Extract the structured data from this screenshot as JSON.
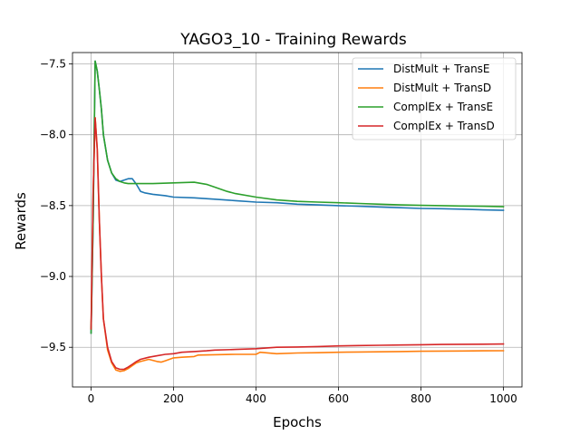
{
  "chart_data": {
    "type": "line",
    "title": "YAGO3_10 - Training Rewards",
    "xlabel": "Epochs",
    "ylabel": "Rewards",
    "xlim": [
      -45,
      1045
    ],
    "ylim": [
      -9.78,
      -7.42
    ],
    "xticks": [
      0,
      200,
      400,
      600,
      800,
      1000
    ],
    "yticks": [
      -9.5,
      -9.0,
      -8.5,
      -8.0,
      -7.5
    ],
    "xtick_labels": [
      "0",
      "200",
      "400",
      "600",
      "800",
      "1000"
    ],
    "ytick_labels": [
      "−9.5",
      "−9.0",
      "−8.5",
      "−8.0",
      "−7.5"
    ],
    "grid": true,
    "legend_position": "top-right",
    "series": [
      {
        "name": "DistMult + TransE",
        "color": "#1f77b4",
        "x": [
          0,
          5,
          10,
          15,
          20,
          25,
          30,
          40,
          50,
          60,
          70,
          80,
          90,
          100,
          110,
          120,
          130,
          150,
          180,
          200,
          250,
          300,
          350,
          400,
          450,
          500,
          550,
          600,
          650,
          700,
          750,
          800,
          850,
          900,
          950,
          1000
        ],
        "y": [
          -9.4,
          -8.6,
          -7.48,
          -7.55,
          -7.68,
          -7.82,
          -8.0,
          -8.18,
          -8.27,
          -8.32,
          -8.33,
          -8.32,
          -8.31,
          -8.31,
          -8.35,
          -8.4,
          -8.41,
          -8.42,
          -8.43,
          -8.44,
          -8.445,
          -8.455,
          -8.465,
          -8.475,
          -8.48,
          -8.49,
          -8.495,
          -8.5,
          -8.505,
          -8.51,
          -8.515,
          -8.52,
          -8.522,
          -8.525,
          -8.53,
          -8.533
        ]
      },
      {
        "name": "DistMult + TransD",
        "color": "#ff7f0e",
        "x": [
          0,
          5,
          10,
          15,
          20,
          25,
          30,
          40,
          50,
          60,
          70,
          80,
          90,
          100,
          110,
          120,
          140,
          160,
          170,
          180,
          200,
          220,
          250,
          260,
          300,
          350,
          400,
          410,
          450,
          500,
          550,
          600,
          650,
          700,
          750,
          800,
          850,
          900,
          950,
          1000
        ],
        "y": [
          -9.37,
          -8.4,
          -7.88,
          -8.1,
          -8.6,
          -9.0,
          -9.3,
          -9.52,
          -9.61,
          -9.66,
          -9.67,
          -9.665,
          -9.65,
          -9.63,
          -9.61,
          -9.6,
          -9.585,
          -9.6,
          -9.605,
          -9.595,
          -9.575,
          -9.57,
          -9.565,
          -9.555,
          -9.552,
          -9.55,
          -9.55,
          -9.535,
          -9.545,
          -9.54,
          -9.538,
          -9.535,
          -9.533,
          -9.532,
          -9.53,
          -9.528,
          -9.527,
          -9.526,
          -9.525,
          -9.524
        ]
      },
      {
        "name": "ComplEx + TransE",
        "color": "#2ca02c",
        "x": [
          0,
          5,
          10,
          15,
          20,
          25,
          30,
          40,
          50,
          60,
          70,
          80,
          90,
          100,
          120,
          150,
          200,
          250,
          280,
          300,
          330,
          350,
          400,
          450,
          500,
          550,
          600,
          650,
          700,
          750,
          800,
          850,
          900,
          950,
          1000
        ],
        "y": [
          -9.4,
          -8.6,
          -7.48,
          -7.55,
          -7.68,
          -7.82,
          -8.0,
          -8.18,
          -8.27,
          -8.31,
          -8.33,
          -8.34,
          -8.345,
          -8.345,
          -8.345,
          -8.345,
          -8.34,
          -8.335,
          -8.35,
          -8.37,
          -8.4,
          -8.415,
          -8.44,
          -8.46,
          -8.47,
          -8.475,
          -8.48,
          -8.485,
          -8.49,
          -8.495,
          -8.498,
          -8.5,
          -8.503,
          -8.505,
          -8.507
        ]
      },
      {
        "name": "ComplEx + TransD",
        "color": "#d62728",
        "x": [
          0,
          5,
          10,
          15,
          20,
          25,
          30,
          40,
          50,
          60,
          70,
          80,
          90,
          100,
          110,
          120,
          140,
          160,
          180,
          200,
          220,
          250,
          280,
          300,
          350,
          400,
          450,
          500,
          550,
          600,
          650,
          700,
          750,
          800,
          850,
          900,
          950,
          1000
        ],
        "y": [
          -9.37,
          -8.4,
          -7.88,
          -8.1,
          -8.6,
          -9.0,
          -9.3,
          -9.5,
          -9.6,
          -9.645,
          -9.655,
          -9.655,
          -9.64,
          -9.62,
          -9.6,
          -9.585,
          -9.57,
          -9.56,
          -9.55,
          -9.545,
          -9.535,
          -9.53,
          -9.525,
          -9.52,
          -9.515,
          -9.51,
          -9.5,
          -9.498,
          -9.495,
          -9.49,
          -9.488,
          -9.486,
          -9.484,
          -9.482,
          -9.48,
          -9.479,
          -9.478,
          -9.477
        ]
      }
    ]
  }
}
